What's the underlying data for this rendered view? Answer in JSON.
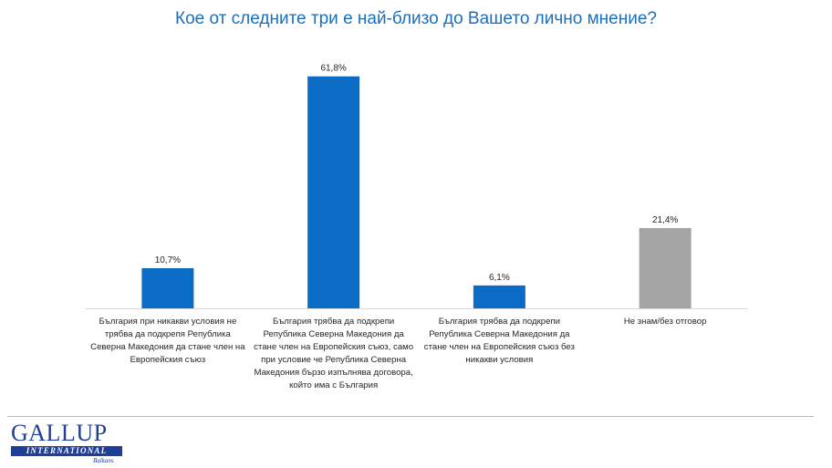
{
  "title": "Кое от следните три е най-близо до Вашето лично мнение?",
  "chart_data": {
    "type": "bar",
    "categories": [
      "България при никакви условия не трябва да подкрепя Република Северна Македония да стане член на Европейския съюз",
      "България трябва да подкрепи Република Северна Македония да стане член на Европейския съюз, само при условие че Република Северна Македония бързо изпълнява договора, който има с България",
      "България трябва да подкрепи Република Северна Македония да стане член на Европейския съюз без никакви условия",
      "Не знам/без отговор"
    ],
    "values": [
      10.7,
      61.8,
      6.1,
      21.4
    ],
    "value_labels": [
      "10,7%",
      "61,8%",
      "6,1%",
      "21,4%"
    ],
    "colors": [
      "#0a6cc4",
      "#0a6cc4",
      "#0a6cc4",
      "#a5a5a5"
    ],
    "title": "Кое от следните три е най-близо до Вашето лично мнение?",
    "xlabel": "",
    "ylabel": "",
    "ylim": [
      0,
      70
    ],
    "grid": false,
    "legend": "none"
  },
  "logo": {
    "main": "GALLUP",
    "band": "INTERNATIONAL",
    "sub": "Balkans"
  }
}
